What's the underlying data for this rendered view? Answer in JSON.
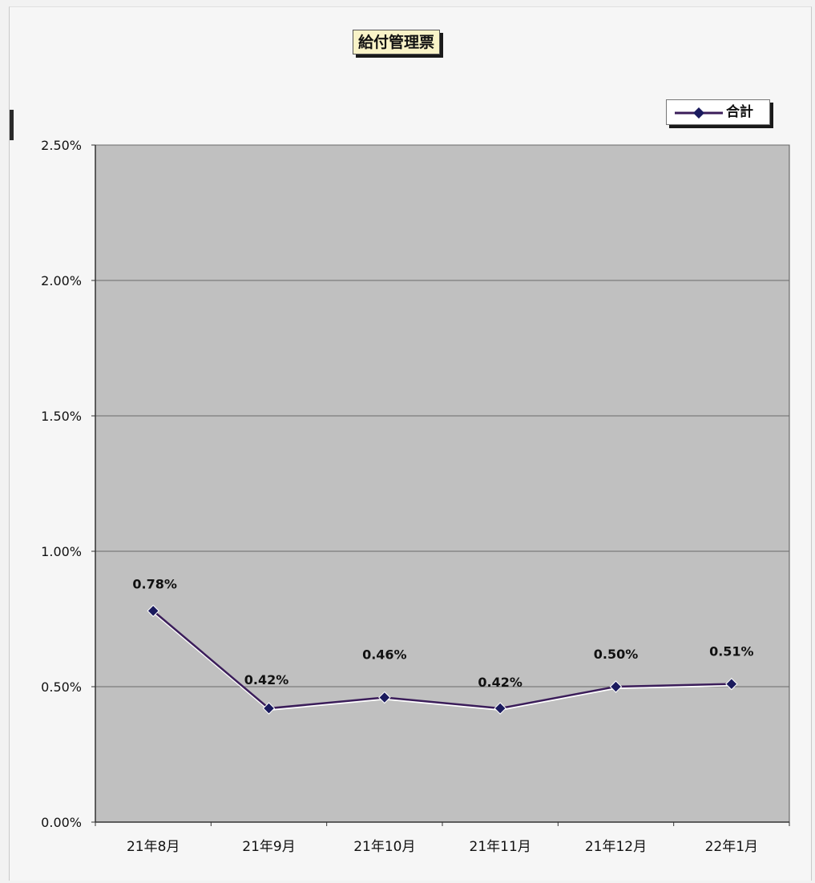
{
  "chart_data": {
    "type": "line",
    "title": "給付管理票",
    "categories": [
      "21年8月",
      "21年9月",
      "21年10月",
      "21年11月",
      "21年12月",
      "22年1月"
    ],
    "series": [
      {
        "name": "合計",
        "values": [
          0.78,
          0.42,
          0.46,
          0.42,
          0.5,
          0.51
        ],
        "labels": [
          "0.78%",
          "0.42%",
          "0.46%",
          "0.42%",
          "0.50%",
          "0.51%"
        ]
      }
    ],
    "ylim": [
      0,
      2.5
    ],
    "yticks": [
      0,
      0.5,
      1.0,
      1.5,
      2.0,
      2.5
    ],
    "ytick_labels": [
      "0.00%",
      "0.50%",
      "1.00%",
      "1.50%",
      "2.00%",
      "2.50%"
    ],
    "xlabel": "",
    "ylabel": "",
    "grid": true,
    "legend_position": "top-right",
    "colors": {
      "line": "#3b1d5a",
      "marker": "#1b1b5e",
      "plot_background": "#c0c0c0",
      "gridline": "#6a6a6a"
    }
  }
}
